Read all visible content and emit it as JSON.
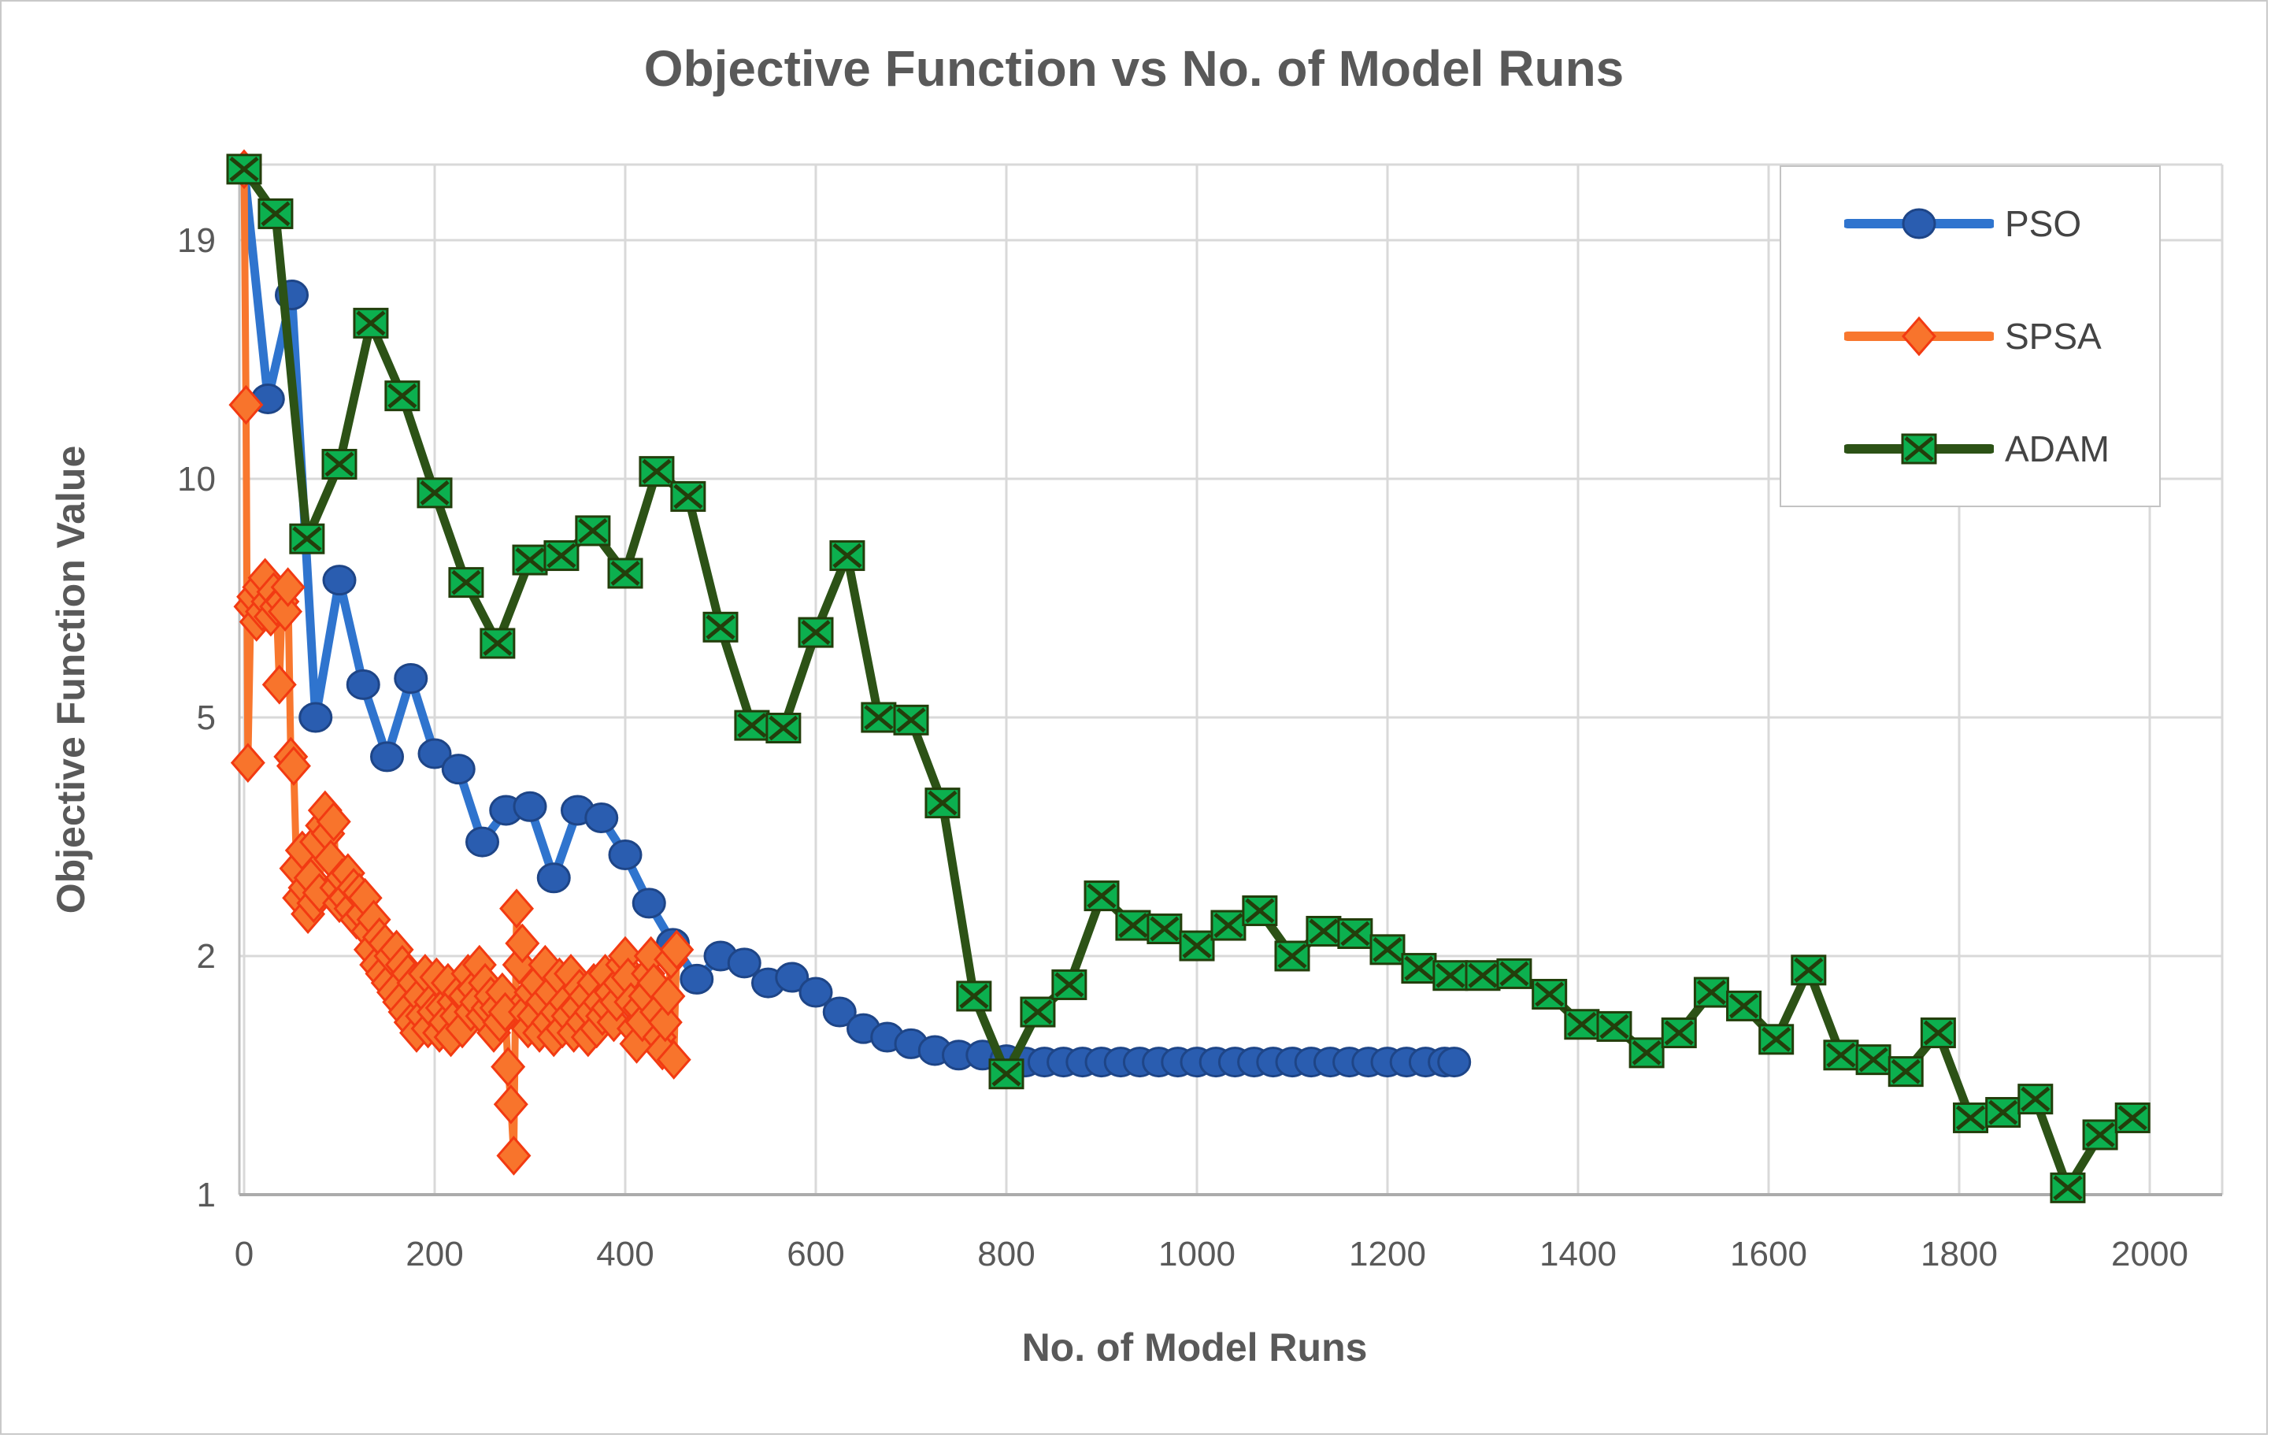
{
  "title": "Objective Function vs No. of Model Runs",
  "x_axis": {
    "label": "No. of Model Runs",
    "ticks": [
      0,
      200,
      400,
      600,
      800,
      1000,
      1200,
      1400,
      1600,
      1800,
      2000
    ],
    "range": [
      0,
      2000
    ]
  },
  "y_axis": {
    "label": "Objective Function Value",
    "ticks": [
      19,
      10,
      5,
      2,
      1
    ],
    "scale": "logarithmic",
    "range": [
      1,
      23.3
    ]
  },
  "legend": {
    "position": "top-right",
    "items": [
      {
        "label": "PSO"
      },
      {
        "label": "SPSA"
      },
      {
        "label": "ADAM"
      }
    ]
  },
  "colors": {
    "title_text": "#595959",
    "tick_text": "#595959",
    "legend_text": "#444444",
    "gridline": "#d9d9d9",
    "axis_line": "#bfbfbf",
    "figure_border": "#c9c9c9",
    "pso_line": "#2f74ce",
    "pso_marker_fill": "#2a5db0",
    "pso_marker_stroke": "#1e4587",
    "spsa_line": "#f8772e",
    "spsa_marker_fill": "#f8742c",
    "spsa_marker_stroke": "#f23a12",
    "adam_line": "#2c5216",
    "adam_marker_fill": "#0cb04f",
    "adam_marker_stroke": "#233e0b"
  },
  "chart_data": {
    "type": "line",
    "title": "Objective Function vs No. of Model Runs",
    "xlabel": "No. of Model Runs",
    "ylabel": "Objective Function Value",
    "x_ticks": [
      0,
      200,
      400,
      600,
      800,
      1000,
      1200,
      1400,
      1600,
      1800,
      2000
    ],
    "y_ticks": [
      19,
      10,
      5,
      2,
      1
    ],
    "xlim": [
      0,
      2000
    ],
    "ylim": [
      1,
      23.3
    ],
    "y_scale": "log",
    "grid": true,
    "legend_position": "top-right",
    "series": [
      {
        "name": "PSO",
        "marker": "circle",
        "line_color": "#2f74ce",
        "marker_fill": "#2a5db0",
        "marker_stroke": "#1e4587",
        "points": [
          [
            0,
            23.0
          ],
          [
            25,
            12.4
          ],
          [
            50,
            16.4
          ],
          [
            75,
            5.0
          ],
          [
            100,
            7.45
          ],
          [
            125,
            5.5
          ],
          [
            150,
            4.3
          ],
          [
            175,
            5.6
          ],
          [
            200,
            4.35
          ],
          [
            225,
            4.1
          ],
          [
            250,
            3.1
          ],
          [
            275,
            3.5
          ],
          [
            300,
            3.55
          ],
          [
            325,
            2.7
          ],
          [
            350,
            3.5
          ],
          [
            375,
            3.4
          ],
          [
            400,
            2.95
          ],
          [
            425,
            2.45
          ],
          [
            450,
            2.1
          ],
          [
            475,
            1.87
          ],
          [
            500,
            2.0
          ],
          [
            525,
            1.96
          ],
          [
            550,
            1.85
          ],
          [
            575,
            1.88
          ],
          [
            600,
            1.8
          ],
          [
            625,
            1.7
          ],
          [
            650,
            1.62
          ],
          [
            675,
            1.58
          ],
          [
            700,
            1.55
          ],
          [
            725,
            1.52
          ],
          [
            750,
            1.5
          ],
          [
            775,
            1.5
          ],
          [
            800,
            1.48
          ],
          [
            820,
            1.47
          ],
          [
            840,
            1.47
          ],
          [
            860,
            1.47
          ],
          [
            880,
            1.47
          ],
          [
            900,
            1.47
          ],
          [
            920,
            1.47
          ],
          [
            940,
            1.47
          ],
          [
            960,
            1.47
          ],
          [
            980,
            1.47
          ],
          [
            1000,
            1.47
          ],
          [
            1020,
            1.47
          ],
          [
            1040,
            1.47
          ],
          [
            1060,
            1.47
          ],
          [
            1080,
            1.47
          ],
          [
            1100,
            1.47
          ],
          [
            1120,
            1.47
          ],
          [
            1140,
            1.47
          ],
          [
            1160,
            1.47
          ],
          [
            1180,
            1.47
          ],
          [
            1200,
            1.47
          ],
          [
            1220,
            1.47
          ],
          [
            1240,
            1.47
          ],
          [
            1260,
            1.47
          ],
          [
            1270,
            1.47
          ]
        ]
      },
      {
        "name": "SPSA",
        "marker": "diamond",
        "line_color": "#f8772e",
        "marker_fill": "#f8742c",
        "marker_stroke": "#f23a12",
        "points": [
          [
            0,
            23.0
          ],
          [
            2,
            12.2
          ],
          [
            4,
            4.2
          ],
          [
            7,
            6.9
          ],
          [
            10,
            7.1
          ],
          [
            13,
            6.6
          ],
          [
            16,
            7.3
          ],
          [
            19,
            6.8
          ],
          [
            22,
            7.5
          ],
          [
            25,
            7.0
          ],
          [
            28,
            6.7
          ],
          [
            31,
            7.2
          ],
          [
            34,
            6.9
          ],
          [
            37,
            5.5
          ],
          [
            40,
            7.0
          ],
          [
            43,
            6.8
          ],
          [
            46,
            7.3
          ],
          [
            49,
            4.3
          ],
          [
            52,
            4.15
          ],
          [
            55,
            2.8
          ],
          [
            58,
            2.5
          ],
          [
            61,
            3.0
          ],
          [
            64,
            2.6
          ],
          [
            67,
            2.35
          ],
          [
            70,
            2.7
          ],
          [
            73,
            2.45
          ],
          [
            76,
            3.1
          ],
          [
            79,
            2.55
          ],
          [
            82,
            3.3
          ],
          [
            85,
            3.5
          ],
          [
            88,
            3.2
          ],
          [
            91,
            2.9
          ],
          [
            94,
            3.35
          ],
          [
            97,
            2.6
          ],
          [
            100,
            2.45
          ],
          [
            103,
            2.7
          ],
          [
            106,
            2.5
          ],
          [
            109,
            2.75
          ],
          [
            112,
            2.4
          ],
          [
            115,
            2.6
          ],
          [
            118,
            2.3
          ],
          [
            121,
            2.55
          ],
          [
            124,
            2.35
          ],
          [
            127,
            2.5
          ],
          [
            130,
            2.2
          ],
          [
            133,
            2.05
          ],
          [
            136,
            2.3
          ],
          [
            139,
            1.95
          ],
          [
            142,
            2.15
          ],
          [
            145,
            1.9
          ],
          [
            148,
            2.1
          ],
          [
            151,
            1.85
          ],
          [
            154,
            2.0
          ],
          [
            157,
            1.8
          ],
          [
            160,
            2.05
          ],
          [
            163,
            1.75
          ],
          [
            166,
            1.95
          ],
          [
            169,
            1.7
          ],
          [
            172,
            1.9
          ],
          [
            175,
            1.65
          ],
          [
            178,
            1.85
          ],
          [
            181,
            1.6
          ],
          [
            184,
            1.78
          ],
          [
            187,
            1.68
          ],
          [
            190,
            1.9
          ],
          [
            193,
            1.62
          ],
          [
            196,
            1.75
          ],
          [
            199,
            1.7
          ],
          [
            202,
            1.88
          ],
          [
            205,
            1.6
          ],
          [
            208,
            1.72
          ],
          [
            211,
            1.65
          ],
          [
            214,
            1.85
          ],
          [
            217,
            1.58
          ],
          [
            220,
            1.75
          ],
          [
            223,
            1.68
          ],
          [
            226,
            1.8
          ],
          [
            229,
            1.62
          ],
          [
            232,
            1.78
          ],
          [
            235,
            1.9
          ],
          [
            238,
            1.7
          ],
          [
            241,
            1.82
          ],
          [
            244,
            1.75
          ],
          [
            247,
            1.95
          ],
          [
            250,
            1.68
          ],
          [
            253,
            1.85
          ],
          [
            256,
            1.72
          ],
          [
            259,
            1.78
          ],
          [
            262,
            1.6
          ],
          [
            265,
            1.72
          ],
          [
            268,
            1.65
          ],
          [
            271,
            1.8
          ],
          [
            274,
            1.7
          ],
          [
            277,
            1.45
          ],
          [
            280,
            1.3
          ],
          [
            283,
            1.12
          ],
          [
            286,
            2.4
          ],
          [
            289,
            1.95
          ],
          [
            292,
            2.1
          ],
          [
            295,
            1.7
          ],
          [
            298,
            1.62
          ],
          [
            301,
            1.8
          ],
          [
            304,
            1.68
          ],
          [
            307,
            1.85
          ],
          [
            310,
            1.6
          ],
          [
            313,
            1.75
          ],
          [
            316,
            1.95
          ],
          [
            319,
            1.65
          ],
          [
            322,
            1.8
          ],
          [
            325,
            1.58
          ],
          [
            328,
            1.7
          ],
          [
            331,
            1.88
          ],
          [
            334,
            1.62
          ],
          [
            337,
            1.75
          ],
          [
            340,
            1.68
          ],
          [
            343,
            1.9
          ],
          [
            346,
            1.6
          ],
          [
            349,
            1.72
          ],
          [
            352,
            1.82
          ],
          [
            355,
            1.65
          ],
          [
            358,
            1.78
          ],
          [
            361,
            1.58
          ],
          [
            364,
            1.7
          ],
          [
            367,
            1.85
          ],
          [
            370,
            1.62
          ],
          [
            373,
            1.75
          ],
          [
            376,
            1.68
          ],
          [
            379,
            1.9
          ],
          [
            382,
            1.72
          ],
          [
            385,
            1.8
          ],
          [
            388,
            1.65
          ],
          [
            391,
            1.75
          ],
          [
            394,
            1.85
          ],
          [
            397,
            1.95
          ],
          [
            400,
            2.0
          ],
          [
            403,
            1.88
          ],
          [
            406,
            1.75
          ],
          [
            409,
            1.62
          ],
          [
            412,
            1.55
          ],
          [
            415,
            1.72
          ],
          [
            418,
            1.65
          ],
          [
            421,
            1.78
          ],
          [
            424,
            1.9
          ],
          [
            427,
            2.0
          ],
          [
            430,
            1.85
          ],
          [
            433,
            1.7
          ],
          [
            436,
            1.58
          ],
          [
            439,
            1.52
          ],
          [
            442,
            1.65
          ],
          [
            445,
            1.78
          ],
          [
            448,
            1.98
          ],
          [
            451,
            1.48
          ],
          [
            454,
            2.05
          ]
        ]
      },
      {
        "name": "ADAM",
        "marker": "square-x",
        "line_color": "#2c5216",
        "marker_fill": "#0cb04f",
        "marker_stroke": "#233e0b",
        "points": [
          [
            0,
            23.0
          ],
          [
            33,
            20.4
          ],
          [
            66,
            8.4
          ],
          [
            100,
            10.4
          ],
          [
            133,
            15.2
          ],
          [
            166,
            12.5
          ],
          [
            200,
            9.6
          ],
          [
            233,
            7.4
          ],
          [
            266,
            6.2
          ],
          [
            300,
            7.9
          ],
          [
            333,
            8.0
          ],
          [
            366,
            8.6
          ],
          [
            400,
            7.6
          ],
          [
            433,
            10.2
          ],
          [
            466,
            9.5
          ],
          [
            500,
            6.5
          ],
          [
            533,
            4.85
          ],
          [
            566,
            4.8
          ],
          [
            600,
            6.4
          ],
          [
            633,
            8.0
          ],
          [
            666,
            5.0
          ],
          [
            700,
            4.95
          ],
          [
            733,
            3.6
          ],
          [
            766,
            1.78
          ],
          [
            800,
            1.42
          ],
          [
            833,
            1.7
          ],
          [
            866,
            1.84
          ],
          [
            900,
            2.52
          ],
          [
            933,
            2.25
          ],
          [
            966,
            2.22
          ],
          [
            1000,
            2.08
          ],
          [
            1033,
            2.25
          ],
          [
            1066,
            2.38
          ],
          [
            1100,
            2.0
          ],
          [
            1133,
            2.2
          ],
          [
            1166,
            2.18
          ],
          [
            1200,
            2.05
          ],
          [
            1233,
            1.93
          ],
          [
            1266,
            1.89
          ],
          [
            1300,
            1.89
          ],
          [
            1333,
            1.9
          ],
          [
            1370,
            1.79
          ],
          [
            1404,
            1.64
          ],
          [
            1438,
            1.63
          ],
          [
            1472,
            1.51
          ],
          [
            1506,
            1.6
          ],
          [
            1540,
            1.8
          ],
          [
            1574,
            1.73
          ],
          [
            1608,
            1.57
          ],
          [
            1642,
            1.92
          ],
          [
            1676,
            1.5
          ],
          [
            1710,
            1.48
          ],
          [
            1744,
            1.43
          ],
          [
            1778,
            1.6
          ],
          [
            1812,
            1.25
          ],
          [
            1846,
            1.27
          ],
          [
            1880,
            1.32
          ],
          [
            1914,
            1.02
          ],
          [
            1948,
            1.19
          ],
          [
            1982,
            1.25
          ]
        ]
      }
    ]
  }
}
